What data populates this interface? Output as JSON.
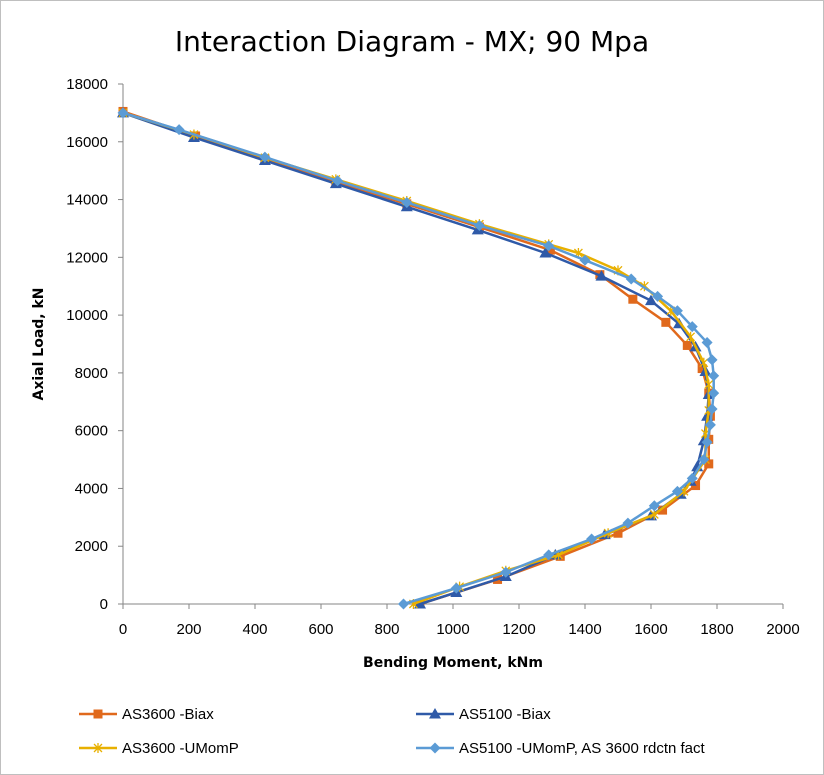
{
  "chart_data": {
    "type": "line",
    "title": "Interaction Diagram - MX; 90 Mpa",
    "xlabel": "Bending Moment, kNm",
    "ylabel": "Axial Load, kN",
    "xlim": [
      0,
      2000
    ],
    "ylim": [
      0,
      18000
    ],
    "x_ticks": [
      "0",
      "200",
      "400",
      "600",
      "800",
      "1000",
      "1200",
      "1400",
      "1600",
      "1800",
      "2000"
    ],
    "y_ticks": [
      "0",
      "2000",
      "4000",
      "6000",
      "8000",
      "10000",
      "12000",
      "14000",
      "16000",
      "18000"
    ],
    "grid": false,
    "legend_position": "bottom",
    "series": [
      {
        "name": "AS3600 -Biax",
        "color": "#e0691c",
        "marker": "square",
        "points": [
          [
            0,
            17050
          ],
          [
            220,
            16200
          ],
          [
            430,
            15400
          ],
          [
            645,
            14600
          ],
          [
            860,
            13850
          ],
          [
            1080,
            13050
          ],
          [
            1295,
            12250
          ],
          [
            1445,
            11400
          ],
          [
            1545,
            10550
          ],
          [
            1645,
            9750
          ],
          [
            1710,
            8950
          ],
          [
            1755,
            8150
          ],
          [
            1775,
            7300
          ],
          [
            1780,
            6500
          ],
          [
            1775,
            5700
          ],
          [
            1775,
            4850
          ],
          [
            1735,
            4100
          ],
          [
            1635,
            3250
          ],
          [
            1500,
            2450
          ],
          [
            1325,
            1650
          ],
          [
            1135,
            850
          ],
          [
            900,
            0
          ]
        ]
      },
      {
        "name": "AS5100 -Biax",
        "color": "#2f5aa8",
        "marker": "triangle",
        "points": [
          [
            0,
            17000
          ],
          [
            215,
            16150
          ],
          [
            430,
            15350
          ],
          [
            645,
            14550
          ],
          [
            860,
            13750
          ],
          [
            1075,
            12950
          ],
          [
            1280,
            12150
          ],
          [
            1450,
            11350
          ],
          [
            1600,
            10500
          ],
          [
            1685,
            9700
          ],
          [
            1735,
            8900
          ],
          [
            1765,
            8050
          ],
          [
            1775,
            7250
          ],
          [
            1770,
            6500
          ],
          [
            1760,
            5650
          ],
          [
            1740,
            4750
          ],
          [
            1720,
            4250
          ],
          [
            1690,
            3800
          ],
          [
            1600,
            3050
          ],
          [
            1460,
            2400
          ],
          [
            1310,
            1700
          ],
          [
            1160,
            950
          ],
          [
            1010,
            400
          ],
          [
            900,
            0
          ]
        ]
      },
      {
        "name": "AS3600 -UMomP",
        "color": "#e8b000",
        "marker": "x",
        "points": [
          [
            0,
            17000
          ],
          [
            215,
            16250
          ],
          [
            430,
            15450
          ],
          [
            645,
            14700
          ],
          [
            860,
            13950
          ],
          [
            1080,
            13150
          ],
          [
            1290,
            12450
          ],
          [
            1380,
            12150
          ],
          [
            1500,
            11550
          ],
          [
            1580,
            11000
          ],
          [
            1660,
            10150
          ],
          [
            1720,
            9250
          ],
          [
            1760,
            8350
          ],
          [
            1775,
            7600
          ],
          [
            1775,
            6700
          ],
          [
            1765,
            5900
          ],
          [
            1765,
            5000
          ],
          [
            1700,
            3900
          ],
          [
            1610,
            3100
          ],
          [
            1470,
            2450
          ],
          [
            1320,
            1700
          ],
          [
            1160,
            1150
          ],
          [
            1020,
            600
          ],
          [
            880,
            0
          ]
        ]
      },
      {
        "name": "AS5100 -UMomP, AS 3600 rdctn fact",
        "color": "#5b9bd5",
        "marker": "diamond",
        "points": [
          [
            0,
            17000
          ],
          [
            170,
            16420
          ],
          [
            430,
            15470
          ],
          [
            650,
            14650
          ],
          [
            860,
            13900
          ],
          [
            1080,
            13100
          ],
          [
            1290,
            12400
          ],
          [
            1400,
            11900
          ],
          [
            1540,
            11250
          ],
          [
            1620,
            10650
          ],
          [
            1680,
            10150
          ],
          [
            1725,
            9600
          ],
          [
            1770,
            9050
          ],
          [
            1785,
            8450
          ],
          [
            1790,
            7900
          ],
          [
            1790,
            7300
          ],
          [
            1785,
            6750
          ],
          [
            1780,
            6200
          ],
          [
            1770,
            5600
          ],
          [
            1760,
            5000
          ],
          [
            1725,
            4350
          ],
          [
            1680,
            3900
          ],
          [
            1610,
            3400
          ],
          [
            1530,
            2800
          ],
          [
            1420,
            2250
          ],
          [
            1290,
            1700
          ],
          [
            1160,
            1100
          ],
          [
            1010,
            550
          ],
          [
            850,
            0
          ]
        ]
      }
    ]
  }
}
